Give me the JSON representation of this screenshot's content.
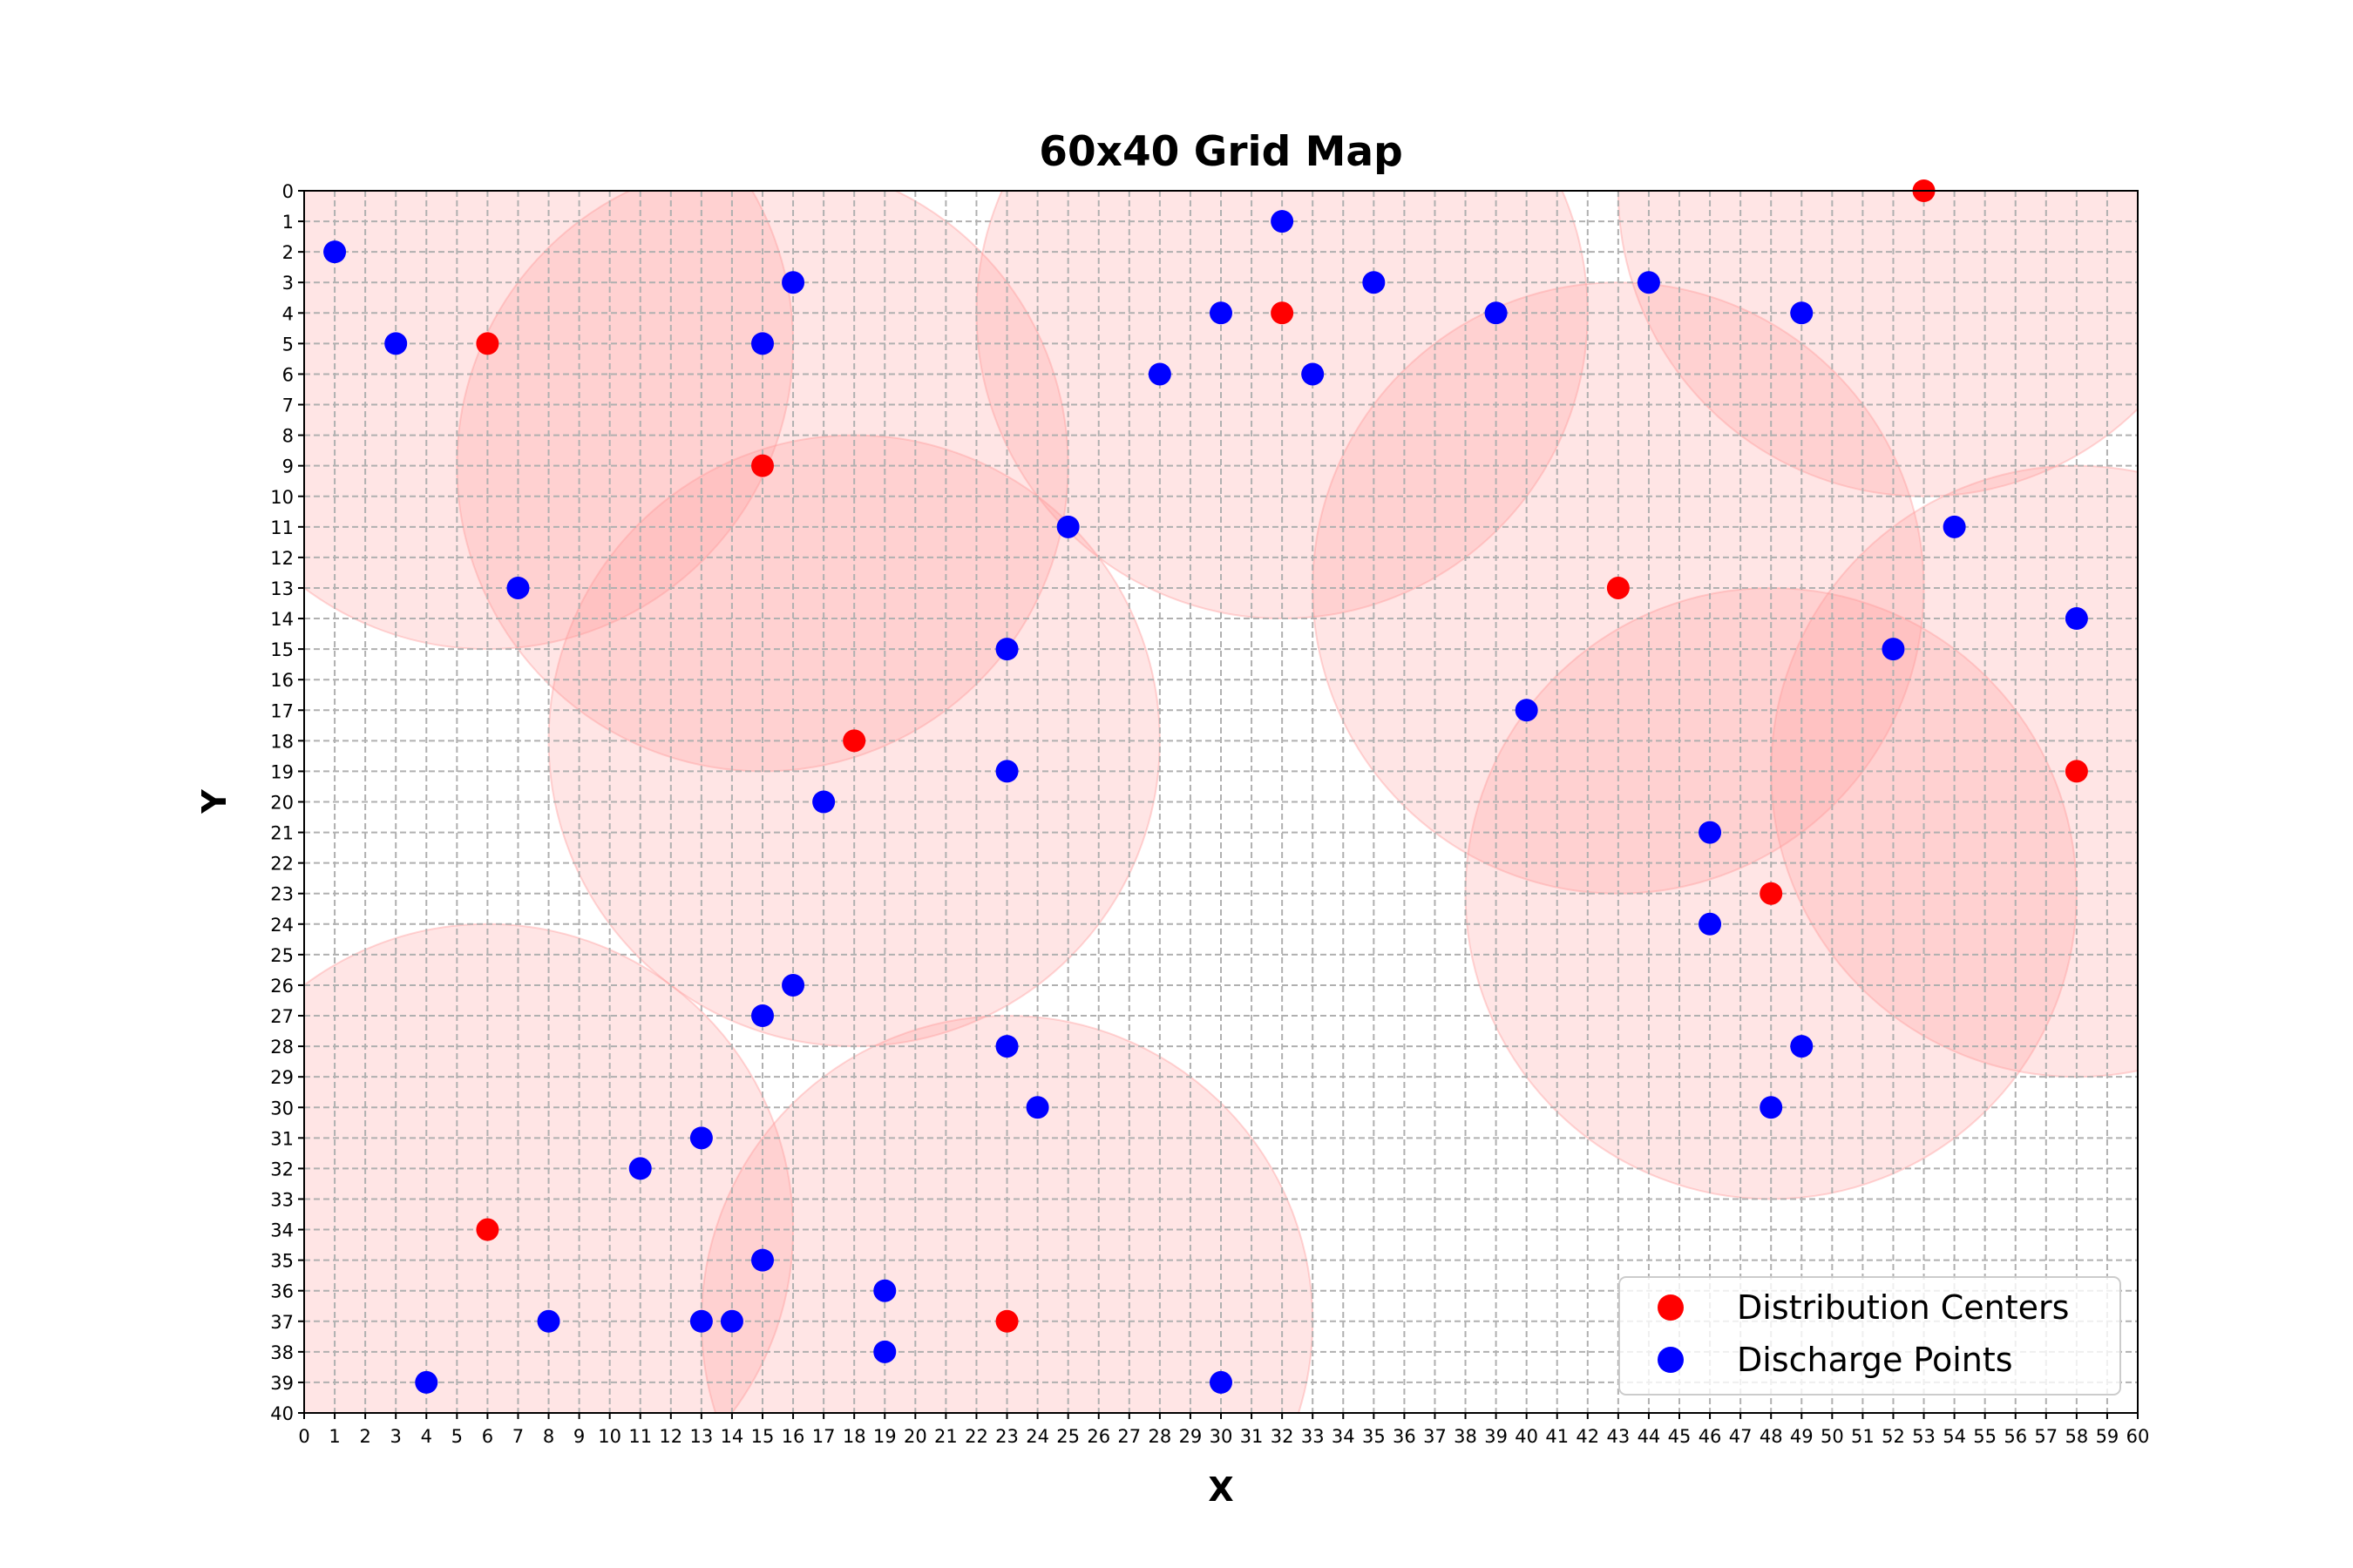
{
  "chart_data": {
    "type": "scatter",
    "title": "60x40 Grid Map",
    "xlabel": "X",
    "ylabel": "Y",
    "xlim": [
      0,
      60
    ],
    "ylim": [
      0,
      40
    ],
    "y_inverted": true,
    "grid": true,
    "legend_position": "bottom-right",
    "colors": {
      "distribution": "#ff0000",
      "discharge": "#0000ff",
      "coverage": "#ff9999"
    },
    "coverage_radius": 10,
    "series": [
      {
        "name": "Distribution Centers",
        "points": [
          {
            "x": 53,
            "y": 0
          },
          {
            "x": 32,
            "y": 4
          },
          {
            "x": 6,
            "y": 5
          },
          {
            "x": 15,
            "y": 9
          },
          {
            "x": 43,
            "y": 13
          },
          {
            "x": 18,
            "y": 18
          },
          {
            "x": 58,
            "y": 19
          },
          {
            "x": 48,
            "y": 23
          },
          {
            "x": 6,
            "y": 34
          },
          {
            "x": 23,
            "y": 37
          }
        ]
      },
      {
        "name": "Discharge Points",
        "points": [
          {
            "x": 32,
            "y": 1
          },
          {
            "x": 1,
            "y": 2
          },
          {
            "x": 16,
            "y": 3
          },
          {
            "x": 35,
            "y": 3
          },
          {
            "x": 44,
            "y": 3
          },
          {
            "x": 30,
            "y": 4
          },
          {
            "x": 39,
            "y": 4
          },
          {
            "x": 49,
            "y": 4
          },
          {
            "x": 3,
            "y": 5
          },
          {
            "x": 15,
            "y": 5
          },
          {
            "x": 28,
            "y": 6
          },
          {
            "x": 33,
            "y": 6
          },
          {
            "x": 25,
            "y": 11
          },
          {
            "x": 54,
            "y": 11
          },
          {
            "x": 7,
            "y": 13
          },
          {
            "x": 58,
            "y": 14
          },
          {
            "x": 23,
            "y": 15
          },
          {
            "x": 52,
            "y": 15
          },
          {
            "x": 40,
            "y": 17
          },
          {
            "x": 23,
            "y": 19
          },
          {
            "x": 17,
            "y": 20
          },
          {
            "x": 46,
            "y": 21
          },
          {
            "x": 46,
            "y": 24
          },
          {
            "x": 16,
            "y": 26
          },
          {
            "x": 15,
            "y": 27
          },
          {
            "x": 23,
            "y": 28
          },
          {
            "x": 49,
            "y": 28
          },
          {
            "x": 24,
            "y": 30
          },
          {
            "x": 48,
            "y": 30
          },
          {
            "x": 13,
            "y": 31
          },
          {
            "x": 11,
            "y": 32
          },
          {
            "x": 15,
            "y": 35
          },
          {
            "x": 19,
            "y": 36
          },
          {
            "x": 8,
            "y": 37
          },
          {
            "x": 13,
            "y": 37
          },
          {
            "x": 14,
            "y": 37
          },
          {
            "x": 19,
            "y": 38
          },
          {
            "x": 4,
            "y": 39
          },
          {
            "x": 30,
            "y": 39
          }
        ]
      }
    ]
  }
}
